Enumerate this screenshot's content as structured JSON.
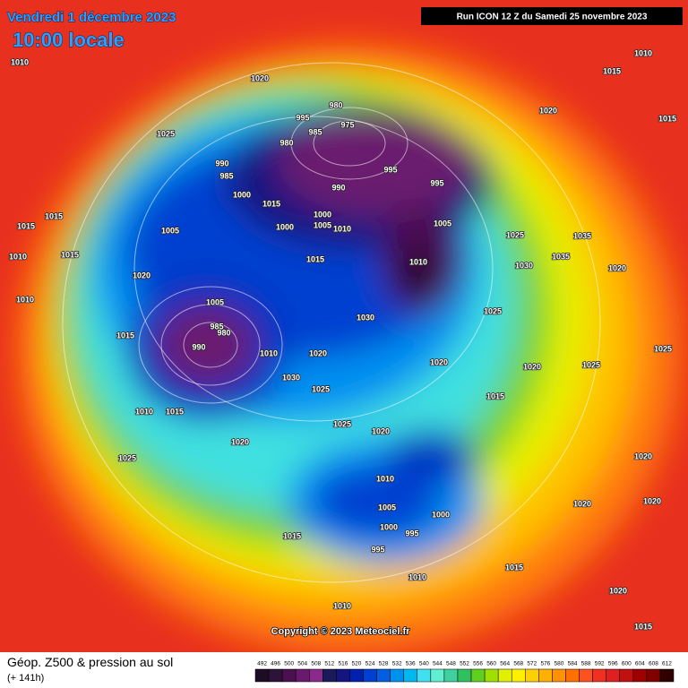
{
  "header": {
    "date": "Vendredi 1 décembre 2023",
    "time": "10:00 locale",
    "run": "Run ICON 12 Z du Samedi 25 novembre 2023"
  },
  "copyright": "Copyright © 2023 Meteociel.fr",
  "footer": {
    "title": "Géop. Z500 & pression au sol",
    "lead": "(+ 141h)"
  },
  "colorbar": {
    "values": [
      492,
      496,
      500,
      504,
      508,
      512,
      516,
      520,
      524,
      528,
      532,
      536,
      540,
      544,
      548,
      552,
      556,
      560,
      564,
      568,
      572,
      576,
      580,
      584,
      588,
      592,
      596,
      600,
      604,
      608,
      612
    ],
    "colors": [
      "#1e0b26",
      "#2e1338",
      "#4a1050",
      "#6a1a6e",
      "#8a2a8a",
      "#1a1a5a",
      "#151580",
      "#0020b0",
      "#0040d0",
      "#0060e0",
      "#0090f0",
      "#00b8f0",
      "#40e0f0",
      "#60f0d0",
      "#40d0a0",
      "#30c060",
      "#60d020",
      "#a0e000",
      "#e0f000",
      "#fff000",
      "#ffd000",
      "#ffb000",
      "#ff9000",
      "#ff7000",
      "#ff5020",
      "#f03020",
      "#e02020",
      "#c01010",
      "#a00000",
      "#800000",
      "#300000"
    ]
  },
  "isobar_labels": [
    1010,
    1020,
    1025,
    995,
    980,
    975,
    980,
    985,
    990,
    985,
    995,
    995,
    990,
    1000,
    1015,
    1000,
    1005,
    1010,
    1005,
    1000,
    1005,
    1015,
    1010,
    1020,
    1010,
    1005,
    985,
    990,
    980,
    1010,
    1020,
    1030,
    1025,
    1020,
    1030,
    1025,
    1025,
    1020,
    1020,
    1025,
    1010,
    1005,
    1000,
    995,
    995,
    1000,
    1015,
    1010,
    1010,
    1015,
    1020,
    1025,
    1030,
    1035,
    1035,
    1020,
    1015,
    1010,
    1020,
    1015,
    1010,
    1015,
    1010,
    1015,
    1015,
    1015,
    1015,
    1020,
    1020,
    1020,
    1015,
    1020,
    1015,
    1025,
    1025
  ]
}
